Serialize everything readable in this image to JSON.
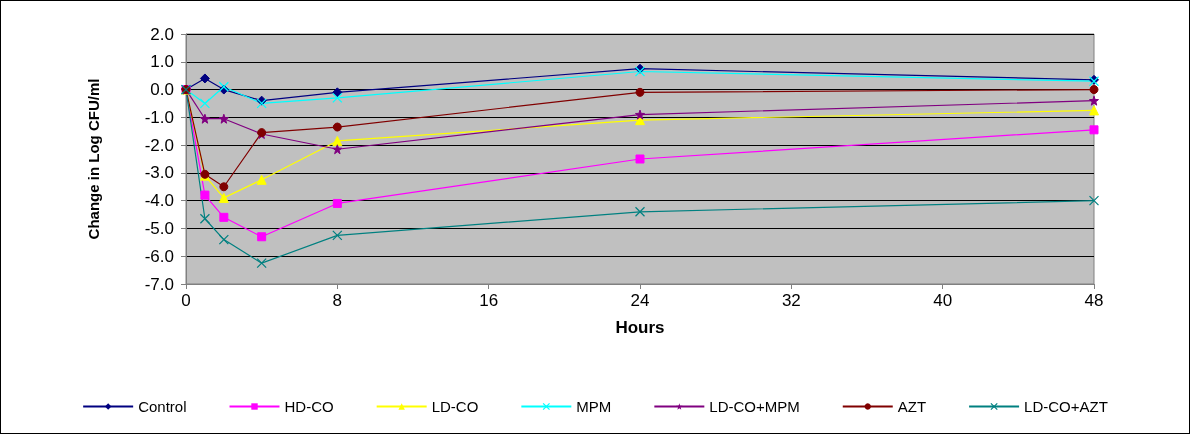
{
  "chart_data": {
    "type": "line",
    "xlabel": "Hours",
    "ylabel": "Change in Log CFU/ml",
    "x": [
      0,
      1,
      2,
      4,
      8,
      24,
      48
    ],
    "series": [
      {
        "name": "Control",
        "color": "#000080",
        "marker": "diamond",
        "values": [
          0,
          0.4,
          0,
          -0.4,
          -0.1,
          0.75,
          0.35
        ]
      },
      {
        "name": "HD-CO",
        "color": "#ff00ff",
        "marker": "square",
        "values": [
          0,
          -3.8,
          -4.6,
          -5.3,
          -4.1,
          -2.5,
          -1.45
        ]
      },
      {
        "name": "LD-CO",
        "color": "#ffff00",
        "marker": "triangle",
        "values": [
          0,
          -3.1,
          -3.9,
          -3.25,
          -1.85,
          -1.1,
          -0.75
        ]
      },
      {
        "name": "MPM",
        "color": "#00ffff",
        "marker": "cross",
        "values": [
          0,
          -0.5,
          0.1,
          -0.5,
          -0.3,
          0.65,
          0.3
        ]
      },
      {
        "name": "LD-CO+MPM",
        "color": "#800080",
        "marker": "star",
        "values": [
          0,
          -1.05,
          -1.05,
          -1.6,
          -2.15,
          -0.9,
          -0.4
        ]
      },
      {
        "name": "AZT",
        "color": "#800000",
        "marker": "circle",
        "values": [
          0,
          -3.05,
          -3.5,
          -1.55,
          -1.35,
          -0.1,
          0
        ]
      },
      {
        "name": "LD-CO+AZT",
        "color": "#008080",
        "marker": "cross",
        "values": [
          0,
          -4.65,
          -5.4,
          -6.25,
          -5.25,
          -4.4,
          -4
        ]
      }
    ],
    "xlim": [
      0,
      48
    ],
    "xticks": [
      0,
      8,
      16,
      24,
      32,
      40,
      48
    ],
    "ylim": [
      -7,
      2
    ],
    "yticks": [
      {
        "value": -7,
        "label": "-7.0"
      },
      {
        "value": -6,
        "label": "-6.0"
      },
      {
        "value": -5,
        "label": "-5.0"
      },
      {
        "value": -4,
        "label": "-4.0"
      },
      {
        "value": -3,
        "label": "-3.0"
      },
      {
        "value": -2,
        "label": "-2.0"
      },
      {
        "value": -1,
        "label": "-1.0"
      },
      {
        "value": 0,
        "label": "0.0"
      },
      {
        "value": 1,
        "label": "1.0"
      },
      {
        "value": 2,
        "label": "2.0"
      }
    ],
    "grid": "y",
    "legend": "bottom",
    "line_style": "solid"
  }
}
